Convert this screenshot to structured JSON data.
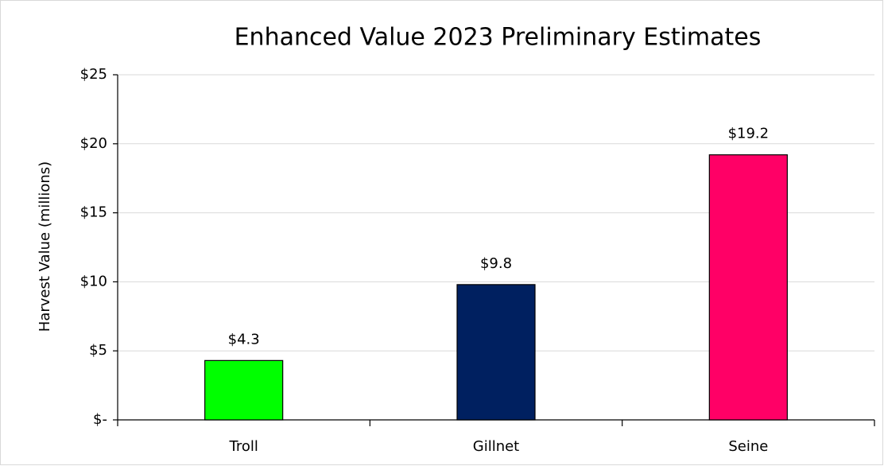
{
  "chart_data": {
    "type": "bar",
    "title": "Enhanced Value 2023 Preliminary Estimates",
    "y_axis_label": "Harvest Value (millions)",
    "categories": [
      "Troll",
      "Gillnet",
      "Seine"
    ],
    "values": [
      4.3,
      9.8,
      19.2
    ],
    "value_labels": [
      "$4.3",
      "$9.8",
      "$19.2"
    ],
    "colors": [
      "#00ff00",
      "#002060",
      "#ff0066"
    ],
    "ylim": [
      0,
      25
    ],
    "yticks": [
      {
        "value": 0,
        "label": "$-"
      },
      {
        "value": 5,
        "label": "$5"
      },
      {
        "value": 10,
        "label": "$10"
      },
      {
        "value": 15,
        "label": "$15"
      },
      {
        "value": 20,
        "label": "$20"
      },
      {
        "value": 25,
        "label": "$25"
      }
    ],
    "grid": true
  }
}
